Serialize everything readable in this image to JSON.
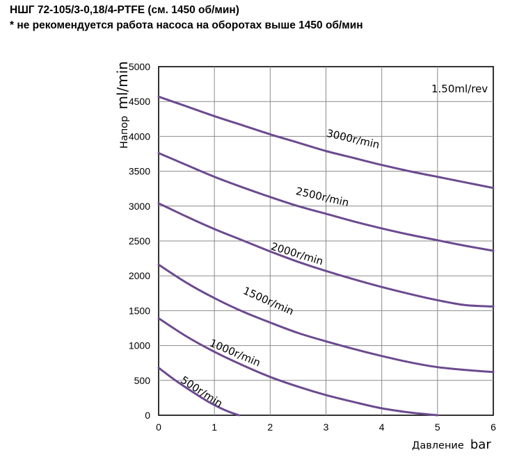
{
  "header": {
    "title": "НШГ 72-105/3-0,18/4-PTFE (см. 1450 об/мин)",
    "note": "* не рекомендуется работа насоса на оборотах выше 1450 об/мин"
  },
  "chart_data": {
    "type": "line",
    "annotation": "1.50ml/rev",
    "ylabel_text": "Напор",
    "ylabel_unit": "ml/min",
    "xlabel_text": "Давление",
    "xlabel_unit": "bar",
    "xlim": [
      0,
      6
    ],
    "ylim": [
      0,
      5000
    ],
    "xticks": [
      "0",
      "1",
      "2",
      "3",
      "4",
      "5",
      "6"
    ],
    "yticks": [
      "0",
      "500",
      "1000",
      "1500",
      "2000",
      "2500",
      "3000",
      "3500",
      "4000",
      "4500",
      "5000"
    ],
    "grid": true,
    "line_color": "#6b4a8f",
    "series": [
      {
        "name": "3000r/min",
        "label_anchor": [
          3.0,
          4000
        ],
        "label_angle": 13,
        "x": [
          0,
          0.5,
          1,
          1.5,
          2,
          2.5,
          3,
          3.5,
          4,
          4.5,
          5,
          5.5,
          6
        ],
        "y": [
          4570,
          4430,
          4290,
          4160,
          4030,
          3910,
          3790,
          3690,
          3590,
          3500,
          3420,
          3340,
          3260
        ]
      },
      {
        "name": "2500r/min",
        "label_anchor": [
          2.45,
          3170
        ],
        "label_angle": 13,
        "x": [
          0,
          0.5,
          1,
          1.5,
          2,
          2.5,
          3,
          3.5,
          4,
          4.5,
          5,
          5.5,
          6
        ],
        "y": [
          3760,
          3590,
          3420,
          3270,
          3130,
          3000,
          2890,
          2780,
          2680,
          2590,
          2510,
          2430,
          2360
        ]
      },
      {
        "name": "2000r/min",
        "label_anchor": [
          2.0,
          2380
        ],
        "label_angle": 17,
        "x": [
          0,
          0.5,
          1,
          1.5,
          2,
          2.5,
          3,
          3.5,
          4,
          4.5,
          5,
          5.5,
          6
        ],
        "y": [
          3040,
          2850,
          2670,
          2510,
          2350,
          2200,
          2070,
          1950,
          1840,
          1740,
          1650,
          1580,
          1560
        ]
      },
      {
        "name": "1500r/min",
        "label_anchor": [
          1.5,
          1750
        ],
        "label_angle": 24,
        "x": [
          0,
          0.5,
          1,
          1.5,
          2,
          2.5,
          3,
          3.5,
          4,
          4.5,
          5,
          5.5,
          6
        ],
        "y": [
          2160,
          1900,
          1680,
          1490,
          1330,
          1180,
          1060,
          950,
          850,
          760,
          690,
          650,
          620
        ]
      },
      {
        "name": "1000r/min",
        "label_anchor": [
          0.9,
          1000
        ],
        "label_angle": 23,
        "x": [
          0,
          0.5,
          1,
          1.5,
          2,
          2.5,
          3,
          3.5,
          4,
          4.5,
          5
        ],
        "y": [
          1390,
          1130,
          910,
          720,
          550,
          410,
          290,
          190,
          100,
          40,
          0
        ]
      },
      {
        "name": "500r/min",
        "label_anchor": [
          0.38,
          480
        ],
        "label_angle": 33,
        "x": [
          0,
          0.3,
          0.6,
          0.9,
          1.2,
          1.44
        ],
        "y": [
          680,
          500,
          340,
          190,
          70,
          0
        ]
      }
    ]
  }
}
